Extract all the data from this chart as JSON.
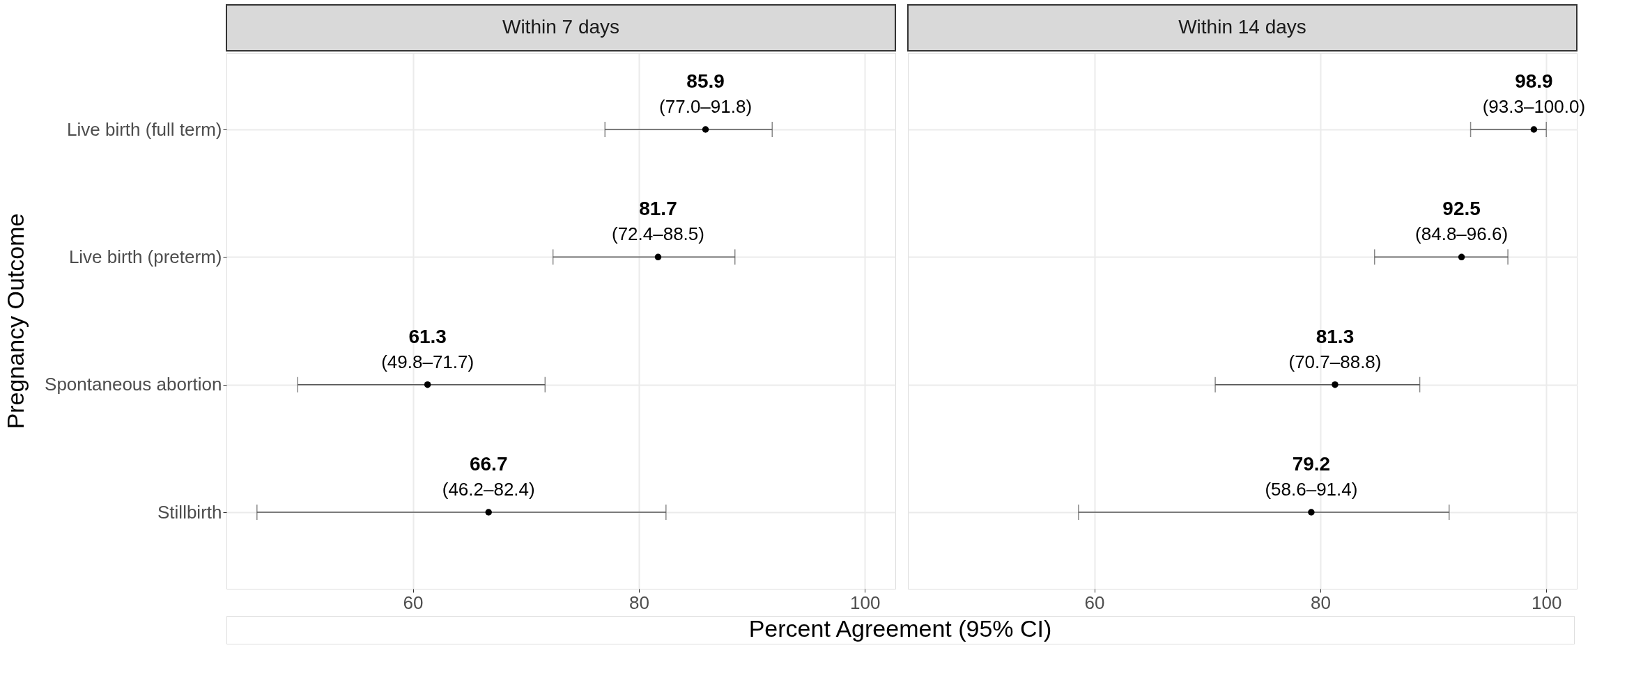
{
  "chart_data": [
    {
      "type": "scatter",
      "orientation": "horizontal",
      "title": "Within 7 days",
      "ylabel": "Pregnancy Outcome",
      "xlabel": "Percent Agreement (95% CI)",
      "categories": [
        "Live birth (full term)",
        "Live birth (preterm)",
        "Spontaneous abortion",
        "Stillbirth"
      ],
      "series": [
        {
          "color": "#000000",
          "values": [
            85.9,
            81.7,
            61.3,
            66.7
          ],
          "errors": [
            [
              77.0,
              91.8
            ],
            [
              72.4,
              88.5
            ],
            [
              49.8,
              71.7
            ],
            [
              46.2,
              82.4
            ]
          ]
        }
      ],
      "xlim": [
        43.5,
        102.7
      ],
      "xticks": [
        60,
        80,
        100
      ],
      "grid": true,
      "marker": "circle",
      "data_labels": true,
      "annotations": [
        {
          "text": "(77.0–91.8)",
          "x": 85.9,
          "y": "Live birth (full term)"
        },
        {
          "text": "(72.4–88.5)",
          "x": 81.7,
          "y": "Live birth (preterm)"
        },
        {
          "text": "(49.8–71.7)",
          "x": 61.3,
          "y": "Spontaneous abortion"
        },
        {
          "text": "(46.2–82.4)",
          "x": 66.7,
          "y": "Stillbirth"
        }
      ]
    },
    {
      "type": "scatter",
      "orientation": "horizontal",
      "title": "Within 14 days",
      "categories": [
        "Live birth (full term)",
        "Live birth (preterm)",
        "Spontaneous abortion",
        "Stillbirth"
      ],
      "series": [
        {
          "color": "#000000",
          "values": [
            98.9,
            92.5,
            81.3,
            79.2
          ],
          "errors": [
            [
              93.3,
              100.0
            ],
            [
              84.8,
              96.6
            ],
            [
              70.7,
              88.8
            ],
            [
              58.6,
              91.4
            ]
          ]
        }
      ],
      "xlim": [
        43.5,
        102.7
      ],
      "xticks": [
        60,
        80,
        100
      ],
      "grid": true,
      "marker": "circle",
      "data_labels": true,
      "tick_labels": "x",
      "annotations": [
        {
          "text": "(93.3–100.0)",
          "x": 98.9,
          "y": "Live birth (full term)"
        },
        {
          "text": "(84.8–96.6)",
          "x": 92.5,
          "y": "Live birth (preterm)"
        },
        {
          "text": "(70.7–88.8)",
          "x": 81.3,
          "y": "Spontaneous abortion"
        },
        {
          "text": "(58.6–91.4)",
          "x": 79.2,
          "y": "Stillbirth"
        }
      ]
    }
  ]
}
